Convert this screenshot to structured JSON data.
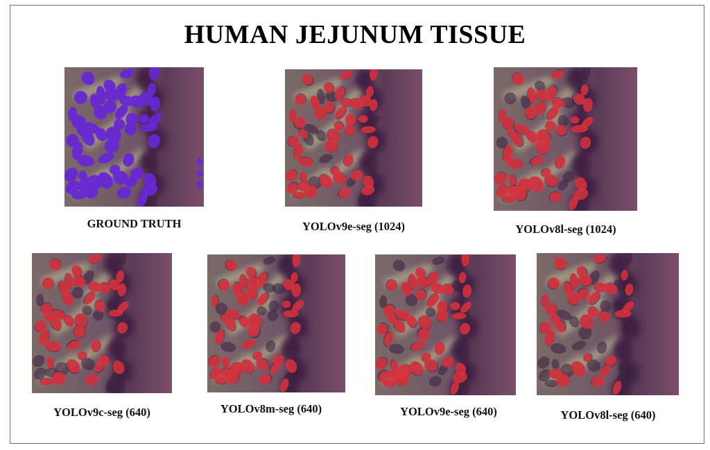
{
  "title": "HUMAN JEJUNUM TISSUE",
  "colors": {
    "ground_truth_overlay": "#6a28d8",
    "prediction_overlay": "#e0323c",
    "tissue": "#6f4a62"
  },
  "panels": [
    {
      "id": "gt",
      "caption": "GROUND TRUTH",
      "overlay": "ground-truth"
    },
    {
      "id": "v9e1024",
      "caption": "YOLOv9e-seg (1024)",
      "overlay": "prediction"
    },
    {
      "id": "v8l1024",
      "caption": "YOLOv8l-seg (1024)",
      "overlay": "prediction"
    },
    {
      "id": "v9c640",
      "caption": "YOLOv9c-seg (640)",
      "overlay": "prediction"
    },
    {
      "id": "v8m640",
      "caption": "YOLOv8m-seg (640)",
      "overlay": "prediction"
    },
    {
      "id": "v9e640",
      "caption": "YOLOv9e-seg (640)",
      "overlay": "prediction"
    },
    {
      "id": "v8l640",
      "caption": "YOLOv8l-seg (640)",
      "overlay": "prediction"
    }
  ]
}
